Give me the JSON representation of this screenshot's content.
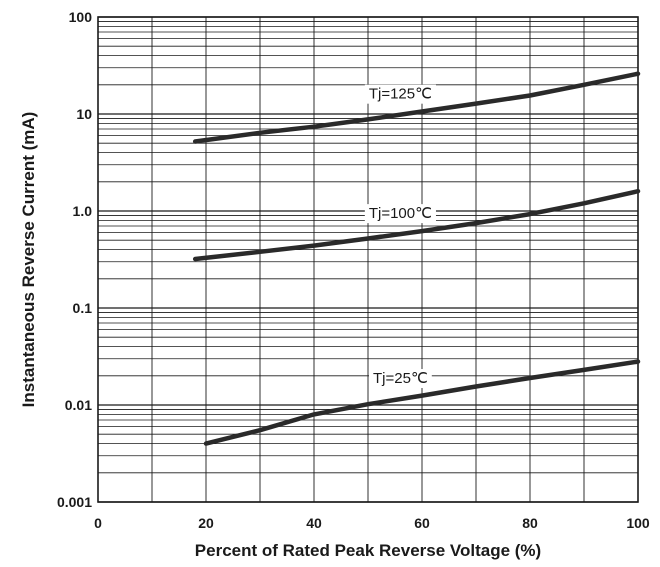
{
  "chart_data": {
    "type": "line",
    "title": "",
    "xlabel": "Percent of Rated Peak Reverse Voltage (%)",
    "ylabel": "Instantaneous Reverse Current (mA)",
    "xlim": [
      0,
      100
    ],
    "ylim": [
      0.001,
      100
    ],
    "yscale": "log",
    "grid": true,
    "x_ticks": [
      0,
      20,
      40,
      60,
      80,
      100
    ],
    "x_tick_labels": [
      "0",
      "20",
      "40",
      "60",
      "80",
      "100"
    ],
    "y_ticks": [
      0.001,
      0.01,
      0.1,
      1,
      10,
      100
    ],
    "y_tick_labels": [
      "0.001",
      "0.01",
      "0.1",
      "1.0",
      "10",
      "100"
    ],
    "series": [
      {
        "name": "Tj=125℃",
        "x": [
          18,
          30,
          40,
          50,
          60,
          70,
          80,
          90,
          100
        ],
        "y": [
          5.2,
          6.4,
          7.4,
          8.8,
          10.6,
          12.8,
          15.5,
          20,
          26
        ]
      },
      {
        "name": "Tj=100℃",
        "x": [
          18,
          30,
          40,
          50,
          60,
          70,
          80,
          90,
          100
        ],
        "y": [
          0.32,
          0.38,
          0.44,
          0.52,
          0.62,
          0.75,
          0.93,
          1.2,
          1.6
        ]
      },
      {
        "name": "Tj=25℃",
        "x": [
          20,
          30,
          40,
          50,
          60,
          70,
          80,
          90,
          100
        ],
        "y": [
          0.004,
          0.0055,
          0.008,
          0.0102,
          0.0125,
          0.0155,
          0.019,
          0.023,
          0.028
        ]
      }
    ],
    "colors": {
      "line": "#2a2a2a",
      "grid": "#1a1a1a",
      "background": "#ffffff"
    }
  }
}
